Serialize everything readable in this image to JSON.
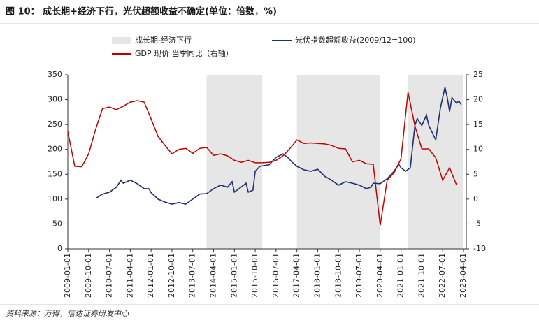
{
  "chart_data": {
    "type": "line",
    "title": "图 10：  成长期+经济下行，光伏超额收益不确定(单位：倍数，%)",
    "source": "资料来源：万得，信达证券研发中心",
    "xlim": [
      "2009-01-01",
      "2023-04-01"
    ],
    "xticks": [
      "2009-01-01",
      "2009-10-01",
      "2010-07-01",
      "2011-04-01",
      "2012-01-01",
      "2012-10-01",
      "2013-07-01",
      "2014-04-01",
      "2015-01-01",
      "2015-10-01",
      "2016-07-01",
      "2017-04-01",
      "2018-01-01",
      "2018-10-01",
      "2019-07-01",
      "2020-04-01",
      "2021-01-01",
      "2021-10-01",
      "2022-07-01",
      "2023-04-01"
    ],
    "ylim": [
      0,
      350
    ],
    "yticks": [
      0,
      50,
      100,
      150,
      200,
      250,
      300,
      350
    ],
    "y2lim": [
      -10,
      25
    ],
    "y2ticks": [
      -10,
      -5,
      0,
      5,
      10,
      15,
      20,
      25
    ],
    "shaded": {
      "name": "成长期-经济下行",
      "color": "#e6e6e6",
      "ranges": [
        [
          "2014-01-01",
          "2016-01-01"
        ],
        [
          "2017-04-01",
          "2020-04-01"
        ],
        [
          "2021-04-01",
          "2023-04-01"
        ]
      ]
    },
    "series": [
      {
        "name": "光伏指数超额收益(2009/12=100)",
        "color": "#1f2f6b",
        "x": [
          "2010-01-01",
          "2010-04-01",
          "2010-07-01",
          "2010-10-01",
          "2010-12-01",
          "2011-01-01",
          "2011-04-01",
          "2011-07-01",
          "2011-10-01",
          "2011-12-01",
          "2012-01-01",
          "2012-04-01",
          "2012-07-01",
          "2012-10-01",
          "2013-01-01",
          "2013-04-01",
          "2013-07-01",
          "2013-10-01",
          "2014-01-01",
          "2014-04-01",
          "2014-07-01",
          "2014-10-01",
          "2014-12-01",
          "2015-01-01",
          "2015-03-01",
          "2015-05-01",
          "2015-06-01",
          "2015-07-01",
          "2015-09-01",
          "2015-10-01",
          "2015-12-01",
          "2016-04-01",
          "2016-07-01",
          "2016-10-01",
          "2016-12-01",
          "2017-02-01",
          "2017-04-01",
          "2017-07-01",
          "2017-10-01",
          "2018-01-01",
          "2018-04-01",
          "2018-07-01",
          "2018-10-01",
          "2019-01-01",
          "2019-04-01",
          "2019-07-01",
          "2019-10-01",
          "2019-12-01",
          "2020-01-01",
          "2020-04-01",
          "2020-07-01",
          "2020-10-01",
          "2020-12-01",
          "2021-01-01",
          "2021-03-01",
          "2021-05-01",
          "2021-07-01",
          "2021-08-01",
          "2021-10-01",
          "2021-12-01",
          "2022-01-01",
          "2022-04-01",
          "2022-06-01",
          "2022-08-01",
          "2022-09-01",
          "2022-10-01",
          "2022-11-01",
          "2023-01-01",
          "2023-02-01",
          "2023-03-01"
        ],
        "values": [
          101,
          110,
          114,
          124,
          138,
          132,
          138,
          131,
          121,
          121,
          113,
          100,
          94,
          90,
          93,
          90,
          100,
          110,
          111,
          121,
          128,
          124,
          135,
          114,
          121,
          128,
          132,
          114,
          118,
          156,
          166,
          169,
          184,
          191,
          184,
          174,
          166,
          159,
          156,
          160,
          146,
          138,
          128,
          135,
          132,
          128,
          121,
          124,
          132,
          131,
          141,
          156,
          170,
          163,
          156,
          163,
          248,
          262,
          248,
          269,
          248,
          219,
          283,
          325,
          304,
          276,
          304,
          293,
          297,
          290
        ]
      },
      {
        "name": "GDP 现价 当季同比（右轴）",
        "color": "#c00000",
        "axis": "y2",
        "x": [
          "2009-01-01",
          "2009-04-01",
          "2009-07-01",
          "2009-10-01",
          "2010-01-01",
          "2010-04-01",
          "2010-07-01",
          "2010-10-01",
          "2011-01-01",
          "2011-04-01",
          "2011-07-01",
          "2011-10-01",
          "2012-01-01",
          "2012-04-01",
          "2012-07-01",
          "2012-10-01",
          "2013-01-01",
          "2013-04-01",
          "2013-07-01",
          "2013-10-01",
          "2014-01-01",
          "2014-04-01",
          "2014-07-01",
          "2014-10-01",
          "2015-01-01",
          "2015-04-01",
          "2015-07-01",
          "2015-10-01",
          "2016-01-01",
          "2016-04-01",
          "2016-07-01",
          "2016-10-01",
          "2017-01-01",
          "2017-04-01",
          "2017-07-01",
          "2017-10-01",
          "2018-01-01",
          "2018-04-01",
          "2018-07-01",
          "2018-10-01",
          "2019-01-01",
          "2019-04-01",
          "2019-07-01",
          "2019-10-01",
          "2020-01-01",
          "2020-04-01",
          "2020-07-01",
          "2020-10-01",
          "2021-01-01",
          "2021-04-01",
          "2021-07-01",
          "2021-10-01",
          "2022-01-01",
          "2022-04-01",
          "2022-07-01",
          "2022-10-01",
          "2023-01-01"
        ],
        "values": [
          13.6,
          6.6,
          6.5,
          9.1,
          14,
          18.2,
          18.5,
          18,
          18.7,
          19.5,
          19.8,
          19.5,
          16.1,
          12.6,
          10.8,
          9.1,
          10,
          10.2,
          9.2,
          10.2,
          10.4,
          8.8,
          9.1,
          8.7,
          7.8,
          7.4,
          7.8,
          7.3,
          7.3,
          7.4,
          7.8,
          8.7,
          10.2,
          11.9,
          11.2,
          11.3,
          11.2,
          11.1,
          10.8,
          10.2,
          10.1,
          7.5,
          7.8,
          7.1,
          7,
          -5.3,
          3.8,
          5.3,
          8.1,
          21.5,
          14.7,
          10.1,
          10.1,
          8.3,
          3.8,
          6.3,
          2.8
        ]
      }
    ]
  }
}
